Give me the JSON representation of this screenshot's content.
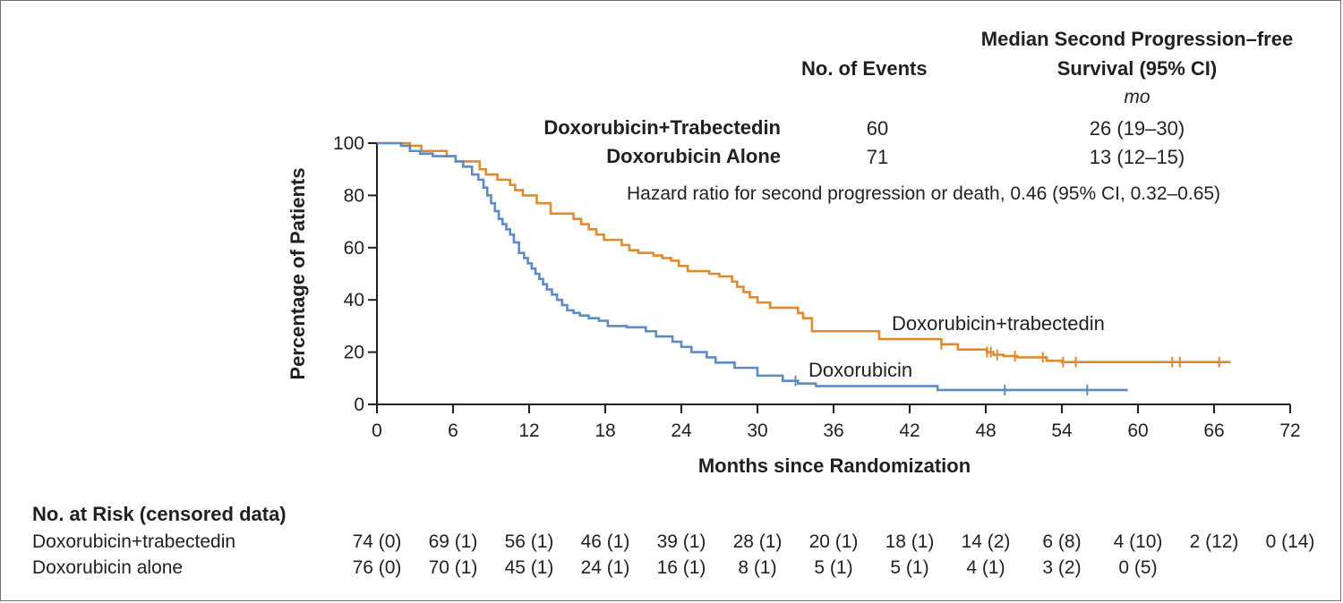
{
  "header": {
    "events_label": "No. of Events",
    "median_label_line1": "Median Second Progression–free",
    "median_label_line2": "Survival (95% CI)",
    "unit": "mo",
    "rows": [
      {
        "label": "Doxorubicin+Trabectedin",
        "events": "60",
        "median": "26 (19–30)"
      },
      {
        "label": "Doxorubicin Alone",
        "events": "71",
        "median": "13 (12–15)"
      }
    ],
    "hazard_ratio": "Hazard ratio for second progression or death, 0.46 (95% CI, 0.32–0.65)"
  },
  "risk_table": {
    "title": "No. at Risk (censored data)",
    "rows": [
      {
        "label": "Doxorubicin+trabectedin",
        "values": [
          "74 (0)",
          "69 (1)",
          "56 (1)",
          "46 (1)",
          "39 (1)",
          "28 (1)",
          "20 (1)",
          "18 (1)",
          "14 (2)",
          "6 (8)",
          "4 (10)",
          "2 (12)",
          "0 (14)"
        ]
      },
      {
        "label": "Doxorubicin alone",
        "values": [
          "76 (0)",
          "70 (1)",
          "45 (1)",
          "24 (1)",
          "16 (1)",
          "8 (1)",
          "5 (1)",
          "5 (1)",
          "4 (1)",
          "3 (2)",
          "0 (5)"
        ]
      }
    ]
  },
  "chart_data": {
    "type": "line",
    "subtype": "kaplan-meier step",
    "xlabel": "Months since Randomization",
    "ylabel": "Percentage of Patients",
    "xlim": [
      0,
      72
    ],
    "ylim": [
      0,
      100
    ],
    "xticks": [
      0,
      6,
      12,
      18,
      24,
      30,
      36,
      42,
      48,
      54,
      60,
      66,
      72
    ],
    "yticks": [
      0,
      20,
      40,
      60,
      80,
      100
    ],
    "grid": false,
    "series": [
      {
        "name": "Doxorubicin+trabectedin",
        "color": "#e08a2e",
        "x": [
          0,
          2.6,
          3.5,
          5.5,
          6.2,
          8.1,
          8.6,
          9.5,
          10.5,
          10.9,
          11.5,
          12.6,
          13.7,
          15.5,
          16.1,
          16.7,
          17.3,
          17.9,
          19.3,
          19.9,
          20.6,
          21.8,
          22.5,
          23.2,
          23.8,
          24.5,
          26.2,
          27.0,
          28.0,
          28.4,
          28.9,
          29.4,
          30.0,
          31.0,
          33.2,
          33.6,
          34.3,
          39.6,
          44.5,
          45.8,
          48.1,
          48.6,
          49.4,
          50.5,
          52.8,
          54.0,
          62.9,
          66.9
        ],
        "y": [
          100,
          99,
          97,
          95,
          93,
          90,
          88,
          86,
          84,
          82,
          80,
          77,
          73,
          71,
          69,
          67,
          65,
          63,
          61,
          59,
          58,
          57,
          56,
          55,
          53,
          51,
          50,
          49,
          47,
          45,
          43,
          41,
          39,
          37,
          35,
          33,
          28,
          25,
          23,
          21,
          20,
          19,
          18.5,
          18,
          16.7,
          16.2,
          16.2,
          16.2
        ],
        "censored_x": [
          44.5,
          48.1,
          48.4,
          48.9,
          50.3,
          52.5,
          54.1,
          55.1,
          62.7,
          63.3,
          66.4
        ],
        "end_x": 67.3
      },
      {
        "name": "Doxorubicin",
        "color": "#5f8bc4",
        "x": [
          0,
          1.9,
          2.6,
          3.4,
          4.4,
          6.2,
          6.8,
          7.5,
          8.0,
          8.4,
          8.7,
          9.0,
          9.3,
          9.6,
          9.9,
          10.2,
          10.5,
          10.8,
          11.2,
          11.6,
          11.9,
          12.2,
          12.5,
          12.8,
          13.1,
          13.4,
          13.8,
          14.2,
          14.6,
          15.0,
          15.5,
          16.0,
          16.7,
          17.5,
          18.2,
          19.7,
          21.2,
          22.0,
          23.3,
          24.0,
          24.8,
          26.0,
          26.7,
          28.2,
          30.0,
          32.0,
          33.2,
          34.6,
          44.2
        ],
        "y": [
          100,
          99,
          97,
          96,
          95,
          93,
          91,
          88,
          86,
          83,
          80,
          77,
          74,
          71,
          69,
          67,
          65,
          62,
          58,
          56,
          54,
          52,
          50,
          48,
          46,
          44,
          42,
          40,
          38,
          36,
          35,
          34,
          33,
          32,
          30,
          29.5,
          28,
          26,
          24,
          22,
          20,
          18,
          16,
          14,
          11,
          9,
          8,
          7,
          5.5
        ],
        "censored_x": [
          33.0,
          49.5,
          56.0
        ],
        "end_x": 59.2
      }
    ],
    "annotations": [
      "Doxorubicin+trabectedin",
      "Doxorubicin"
    ]
  }
}
